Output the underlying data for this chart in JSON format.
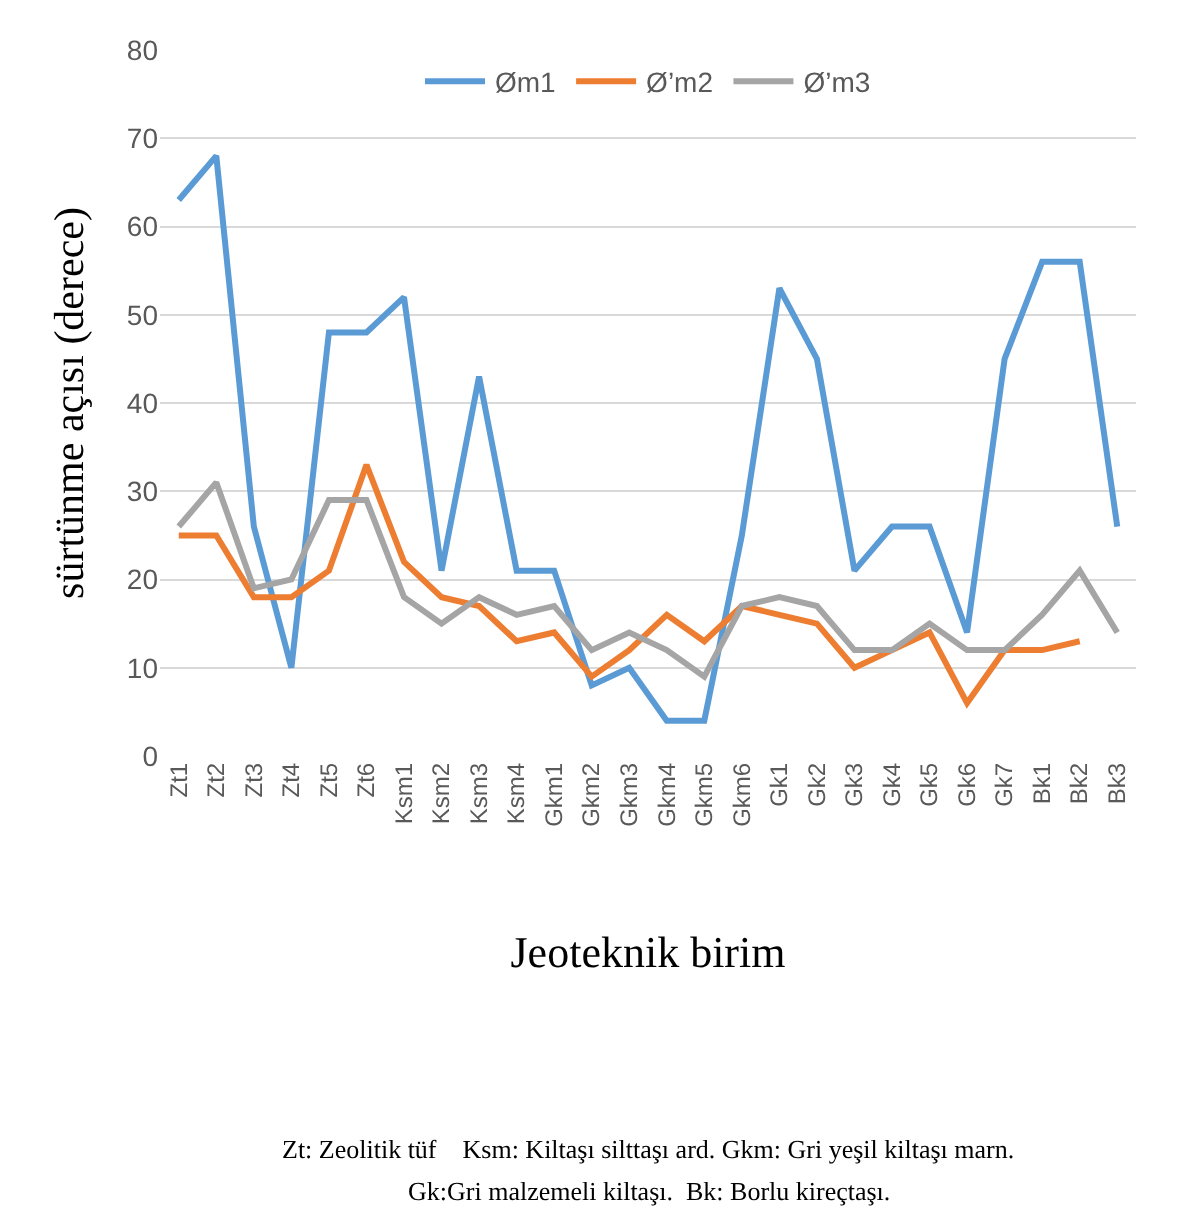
{
  "chart_data": {
    "type": "line",
    "xlabel": "Jeoteknik birim",
    "ylabel": "sürtünme açısı (derece)",
    "categories": [
      "Zt1",
      "Zt2",
      "Zt3",
      "Zt4",
      "Zt5",
      "Zt6",
      "Ksm1",
      "Ksm2",
      "Ksm3",
      "Ksm4",
      "Gkm1",
      "Gkm2",
      "Gkm3",
      "Gkm4",
      "Gkm5",
      "Gkm6",
      "Gk1",
      "Gk2",
      "Gk3",
      "Gk4",
      "Gk5",
      "Gk6",
      "Gk7",
      "Bk1",
      "Bk2",
      "Bk3"
    ],
    "series": [
      {
        "name": "Øm1",
        "color": "#5b9bd5",
        "values": [
          63,
          68,
          26,
          10,
          48,
          48,
          52,
          21,
          43,
          21,
          21,
          8,
          10,
          4,
          4,
          25,
          53,
          45,
          21,
          26,
          26,
          14,
          45,
          56,
          56,
          26
        ]
      },
      {
        "name": "Ø’m2",
        "color": "#ed7d31",
        "values": [
          25,
          25,
          18,
          18,
          21,
          33,
          22,
          18,
          17,
          13,
          14,
          9,
          12,
          16,
          13,
          17,
          16,
          15,
          10,
          12,
          14,
          6,
          12,
          12,
          13,
          null
        ]
      },
      {
        "name": "Ø’m3",
        "color": "#a5a5a5",
        "values": [
          26,
          31,
          19,
          20,
          29,
          29,
          18,
          15,
          18,
          16,
          17,
          12,
          14,
          12,
          9,
          17,
          18,
          17,
          12,
          12,
          15,
          12,
          12,
          16,
          21,
          14
        ]
      }
    ],
    "ylim": [
      0,
      80
    ],
    "yticks": [
      0,
      10,
      20,
      30,
      40,
      50,
      60,
      70,
      80
    ],
    "grid": "y",
    "legend": "top",
    "marker": "none",
    "line_style": "solid",
    "annotations": [
      "Zt: Zeolitik tüf    Ksm: Kiltaşı silttaşı ard. Gkm: Gri yeşil kiltaşı marn.",
      "Gk:Gri malzemeli kiltaşı.  Bk: Borlu kireçtaşı."
    ]
  }
}
